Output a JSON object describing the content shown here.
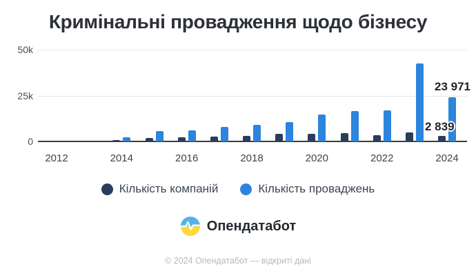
{
  "title": "Кримінальні провадження щодо бізнесу",
  "chart_data": {
    "type": "bar",
    "categories": [
      2012,
      2013,
      2014,
      2015,
      2016,
      2017,
      2018,
      2019,
      2020,
      2021,
      2022,
      2023,
      2024
    ],
    "series": [
      {
        "name": "Кількість компаній",
        "color": "#293d5c",
        "values": [
          0,
          0,
          700,
          1900,
          2100,
          2500,
          2900,
          4000,
          4200,
          4400,
          3500,
          4800,
          2839
        ]
      },
      {
        "name": "Кількість проваджень",
        "color": "#2d84dc",
        "values": [
          0,
          0,
          2400,
          5500,
          6000,
          8000,
          9000,
          10500,
          14500,
          16400,
          16800,
          42500,
          23971
        ]
      }
    ],
    "x_tick_labels": [
      "2012",
      "2014",
      "2016",
      "2018",
      "2020",
      "2022",
      "2024"
    ],
    "y_ticks": [
      "50k",
      "25k",
      "0"
    ],
    "ylim": [
      0,
      50000
    ],
    "grid": true,
    "legend_position": "bottom",
    "annotations": [
      {
        "text": "23 971",
        "year": 2024,
        "series": "Кількість проваджень"
      },
      {
        "text": "2 839",
        "year": 2024,
        "series": "Кількість компаній"
      }
    ]
  },
  "legend": {
    "items": [
      {
        "label": "Кількість компаній",
        "color": "#293d5c"
      },
      {
        "label": "Кількість проваджень",
        "color": "#2d84dc"
      }
    ]
  },
  "branding": {
    "name": "Опендатабот",
    "flag_colors": {
      "top": "#55b2e9",
      "bottom": "#ffd83b",
      "pulse": "#ffffff"
    }
  },
  "footer": {
    "copyright": "© 2024 Опендатабот — відкриті дані"
  }
}
